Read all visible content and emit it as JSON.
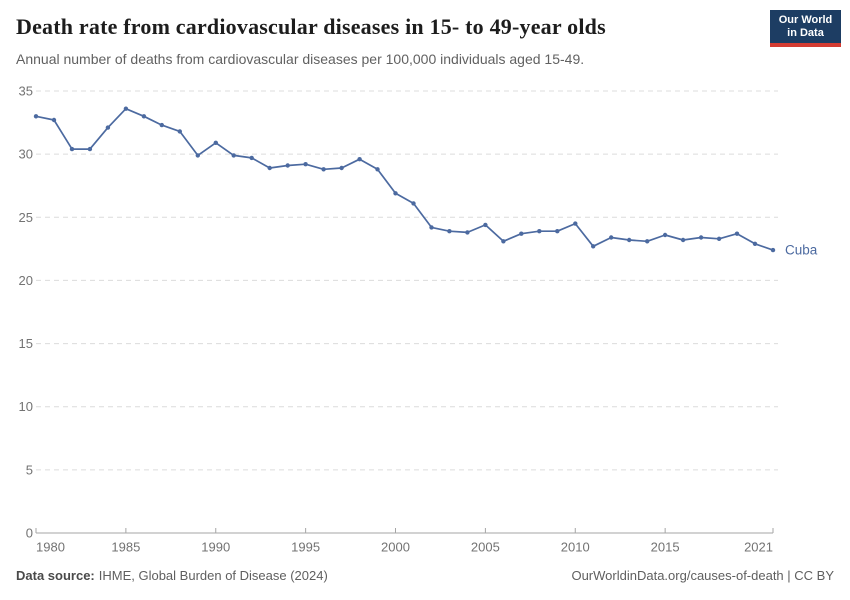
{
  "header": {
    "title": "Death rate from cardiovascular diseases in 15- to 49-year olds",
    "subtitle": "Annual number of deaths from cardiovascular diseases per 100,000 individuals aged 15-49.",
    "logo": {
      "line1": "Our World",
      "line2": "in Data",
      "bg_color": "#1d3d63",
      "accent_color": "#d43c32"
    }
  },
  "chart_data": {
    "type": "line",
    "title": "Death rate from cardiovascular diseases in 15- to 49-year olds",
    "subtitle": "Annual number of deaths from cardiovascular diseases per 100,000 individuals aged 15-49.",
    "xlabel": "",
    "ylabel": "",
    "x": [
      1980,
      1981,
      1982,
      1983,
      1984,
      1985,
      1986,
      1987,
      1988,
      1989,
      1990,
      1991,
      1992,
      1993,
      1994,
      1995,
      1996,
      1997,
      1998,
      1999,
      2000,
      2001,
      2002,
      2003,
      2004,
      2005,
      2006,
      2007,
      2008,
      2009,
      2010,
      2011,
      2012,
      2013,
      2014,
      2015,
      2016,
      2017,
      2018,
      2019,
      2020,
      2021
    ],
    "series": [
      {
        "name": "Cuba",
        "color": "#4c6aa0",
        "values": [
          33.0,
          32.7,
          30.4,
          30.4,
          32.1,
          33.6,
          33.0,
          32.3,
          31.8,
          29.9,
          30.9,
          29.9,
          29.7,
          28.9,
          29.1,
          29.2,
          28.8,
          28.9,
          29.6,
          28.8,
          26.9,
          26.1,
          24.2,
          23.9,
          23.8,
          24.4,
          23.1,
          23.7,
          23.9,
          23.9,
          24.5,
          22.7,
          23.4,
          23.2,
          23.1,
          23.6,
          23.2,
          23.4,
          23.3,
          23.7,
          22.9,
          22.4
        ]
      }
    ],
    "ylim": [
      0,
      35
    ],
    "yticks": [
      0,
      5,
      10,
      15,
      20,
      25,
      30,
      35
    ],
    "xticks": [
      1980,
      1985,
      1990,
      1995,
      2000,
      2005,
      2010,
      2015,
      2021
    ],
    "grid": "horizontal-dashed",
    "legend": "end-of-line-label",
    "colors": {
      "grid": "#dcdcdc",
      "axis": "#a5a5a5",
      "tick_label": "#737373"
    }
  },
  "footer": {
    "source_label": "Data source:",
    "source_text": "IHME, Global Burden of Disease (2024)",
    "rights": "OurWorldinData.org/causes-of-death | CC BY"
  }
}
